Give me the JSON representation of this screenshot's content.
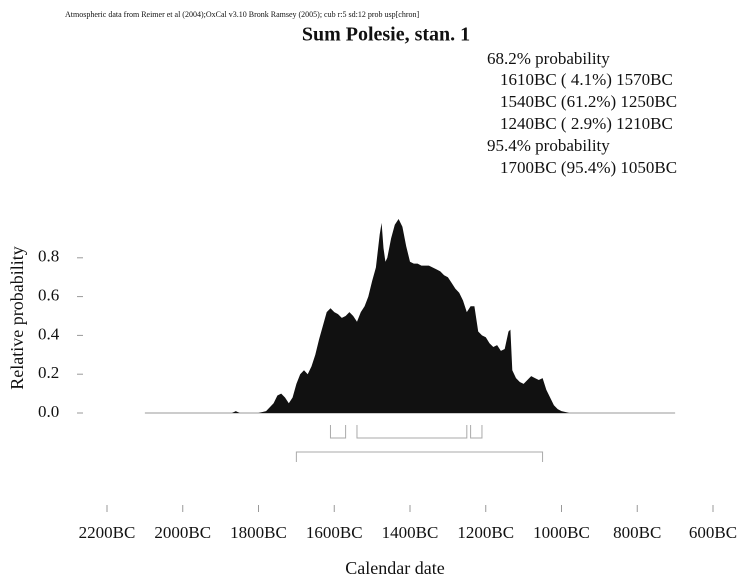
{
  "chart_data": {
    "type": "area",
    "header": "Atmospheric data from Reimer et al (2004);OxCal v3.10 Bronk Ramsey (2005); cub r:5 sd:12 prob usp[chron]",
    "title": "Sum Polesie, stan. 1",
    "xlabel": "Calendar date",
    "ylabel": "Relative probability",
    "annotations": [
      "68.2% probability",
      "1610BC ( 4.1%) 1570BC",
      "1540BC (61.2%) 1250BC",
      "1240BC ( 2.9%) 1210BC",
      "95.4% probability",
      "1700BC (95.4%) 1050BC"
    ],
    "ranges_68": [
      [
        -1610,
        -1570
      ],
      [
        -1540,
        -1250
      ],
      [
        -1240,
        -1210
      ]
    ],
    "ranges_95": [
      [
        -1700,
        -1050
      ]
    ],
    "color": "#111111",
    "x": [
      -2100,
      -1900,
      -1870,
      -1860,
      -1850,
      -1800,
      -1780,
      -1760,
      -1750,
      -1740,
      -1730,
      -1720,
      -1710,
      -1700,
      -1690,
      -1680,
      -1670,
      -1660,
      -1650,
      -1640,
      -1630,
      -1620,
      -1610,
      -1600,
      -1590,
      -1580,
      -1570,
      -1560,
      -1550,
      -1540,
      -1530,
      -1520,
      -1510,
      -1500,
      -1490,
      -1480,
      -1475,
      -1470,
      -1465,
      -1460,
      -1450,
      -1440,
      -1430,
      -1420,
      -1410,
      -1400,
      -1390,
      -1380,
      -1370,
      -1360,
      -1350,
      -1340,
      -1330,
      -1320,
      -1310,
      -1300,
      -1290,
      -1280,
      -1270,
      -1260,
      -1250,
      -1240,
      -1230,
      -1220,
      -1210,
      -1200,
      -1190,
      -1180,
      -1170,
      -1160,
      -1150,
      -1140,
      -1135,
      -1130,
      -1120,
      -1110,
      -1100,
      -1090,
      -1080,
      -1070,
      -1060,
      -1050,
      -1040,
      -1030,
      -1020,
      -1010,
      -1000,
      -990,
      -980,
      -700
    ],
    "values": [
      0,
      0,
      0,
      0.01,
      0,
      0,
      0.01,
      0.05,
      0.09,
      0.1,
      0.08,
      0.05,
      0.08,
      0.15,
      0.2,
      0.22,
      0.2,
      0.24,
      0.3,
      0.38,
      0.45,
      0.52,
      0.54,
      0.52,
      0.51,
      0.49,
      0.5,
      0.52,
      0.5,
      0.47,
      0.52,
      0.55,
      0.6,
      0.68,
      0.75,
      0.92,
      0.98,
      0.85,
      0.78,
      0.8,
      0.9,
      0.97,
      1.0,
      0.96,
      0.86,
      0.78,
      0.77,
      0.77,
      0.76,
      0.76,
      0.76,
      0.75,
      0.74,
      0.73,
      0.71,
      0.7,
      0.67,
      0.64,
      0.62,
      0.58,
      0.52,
      0.55,
      0.55,
      0.42,
      0.4,
      0.39,
      0.36,
      0.34,
      0.35,
      0.32,
      0.33,
      0.42,
      0.43,
      0.22,
      0.18,
      0.16,
      0.15,
      0.17,
      0.19,
      0.18,
      0.17,
      0.18,
      0.12,
      0.08,
      0.04,
      0.02,
      0.01,
      0.005,
      0,
      0
    ],
    "xlim": [
      -2200,
      -600
    ],
    "ylim": [
      0,
      1
    ],
    "xticks": [
      {
        "value": -2200,
        "label": "2200BC"
      },
      {
        "value": -2000,
        "label": "2000BC"
      },
      {
        "value": -1800,
        "label": "1800BC"
      },
      {
        "value": -1600,
        "label": "1600BC"
      },
      {
        "value": -1400,
        "label": "1400BC"
      },
      {
        "value": -1200,
        "label": "1200BC"
      },
      {
        "value": -1000,
        "label": "1000BC"
      },
      {
        "value": -800,
        "label": "800BC"
      },
      {
        "value": -600,
        "label": "600BC"
      }
    ],
    "yticks": [
      {
        "value": 0,
        "label": "0.0"
      },
      0.2,
      0.4,
      0.6,
      0.8
    ]
  }
}
